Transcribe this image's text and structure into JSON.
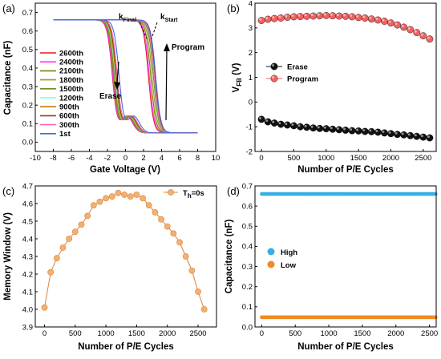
{
  "chart_data": [
    {
      "panel": "(a)",
      "type": "line",
      "xlabel": "Gate Voltage (V)",
      "ylabel": "Capacitance (nF)",
      "xlim": [
        -10,
        10
      ],
      "ylim": [
        -0.05,
        0.75
      ],
      "xticks": [
        -10,
        -8,
        -6,
        -4,
        -2,
        0,
        2,
        4,
        6,
        8,
        10
      ],
      "yticks": [
        0.0,
        0.1,
        0.2,
        0.3,
        0.4,
        0.5,
        0.6,
        0.7
      ],
      "legend_position": "left",
      "series": [
        {
          "name": "2600th",
          "color": "#e41a1c",
          "erase_vfb": -1.45,
          "program_vfb": 2.55
        },
        {
          "name": "2400th",
          "color": "#ff33ff",
          "erase_vfb": -1.4,
          "program_vfb": 2.65
        },
        {
          "name": "2100th",
          "color": "#7f7f00",
          "erase_vfb": -1.32,
          "program_vfb": 2.8
        },
        {
          "name": "1800th",
          "color": "#9a9a33",
          "erase_vfb": -1.25,
          "program_vfb": 2.95
        },
        {
          "name": "1500th",
          "color": "#6b8e23",
          "erase_vfb": -1.2,
          "program_vfb": 3.1
        },
        {
          "name": "1200th",
          "color": "#7fffd4",
          "erase_vfb": -1.14,
          "program_vfb": 3.2
        },
        {
          "name": "900th",
          "color": "#b8860b",
          "erase_vfb": -1.08,
          "program_vfb": 3.3
        },
        {
          "name": "600th",
          "color": "#8b4513",
          "erase_vfb": -1.0,
          "program_vfb": 3.3
        },
        {
          "name": "300th",
          "color": "#ff69b4",
          "erase_vfb": -0.9,
          "program_vfb": 3.2
        },
        {
          "name": "1st",
          "color": "#4169e1",
          "erase_vfb": -0.7,
          "program_vfb": 3.35
        }
      ],
      "c_max": 0.66,
      "c_min": 0.05,
      "annotations": {
        "k_final": "k",
        "k_final_sub": "Final",
        "k_start": "k",
        "k_start_sub": "Start",
        "erase": "Erase",
        "program": "Program"
      }
    },
    {
      "panel": "(b)",
      "type": "scatter",
      "xlabel": "Number of P/E Cycles",
      "ylabel": "V",
      "ylabel_sub": "FB",
      "ylabel_unit": " (V)",
      "xlim": [
        -100,
        2700
      ],
      "ylim": [
        -2,
        4
      ],
      "xticks": [
        0,
        500,
        1000,
        1500,
        2000,
        2500
      ],
      "yticks": [
        -2,
        -1,
        0,
        1,
        2,
        3,
        4
      ],
      "legend_position": "center-left",
      "x": [
        0,
        100,
        200,
        300,
        400,
        500,
        600,
        700,
        800,
        900,
        1000,
        1100,
        1200,
        1300,
        1400,
        1500,
        1600,
        1700,
        1800,
        1900,
        2000,
        2100,
        2200,
        2300,
        2400,
        2500,
        2600
      ],
      "series": [
        {
          "name": "Erase",
          "color": "#111111",
          "values": [
            -0.7,
            -0.8,
            -0.85,
            -0.9,
            -0.93,
            -0.96,
            -1.0,
            -1.02,
            -1.05,
            -1.07,
            -1.08,
            -1.1,
            -1.12,
            -1.14,
            -1.16,
            -1.17,
            -1.19,
            -1.2,
            -1.22,
            -1.25,
            -1.28,
            -1.31,
            -1.33,
            -1.36,
            -1.39,
            -1.42,
            -1.45
          ]
        },
        {
          "name": "Program",
          "color": "#f26161",
          "values": [
            3.3,
            3.35,
            3.38,
            3.4,
            3.43,
            3.45,
            3.46,
            3.47,
            3.48,
            3.49,
            3.5,
            3.49,
            3.48,
            3.47,
            3.45,
            3.42,
            3.4,
            3.36,
            3.32,
            3.27,
            3.2,
            3.12,
            3.03,
            2.93,
            2.81,
            2.68,
            2.55
          ]
        }
      ]
    },
    {
      "panel": "(c)",
      "type": "line",
      "xlabel": "Number of P/E Cycles",
      "ylabel": "Memory Window (V)",
      "xlim": [
        -150,
        2800
      ],
      "ylim": [
        3.9,
        4.7
      ],
      "xticks": [
        0,
        500,
        1000,
        1500,
        2000,
        2500
      ],
      "yticks": [
        3.9,
        4.0,
        4.1,
        4.2,
        4.3,
        4.4,
        4.5,
        4.6,
        4.7
      ],
      "legend_position": "top-right",
      "x": [
        0,
        100,
        200,
        300,
        400,
        500,
        600,
        700,
        800,
        900,
        1000,
        1100,
        1200,
        1300,
        1400,
        1500,
        1600,
        1700,
        1800,
        1900,
        2000,
        2100,
        2200,
        2300,
        2400,
        2500,
        2600
      ],
      "series": [
        {
          "name": "T",
          "name_sub": "h",
          "name_rest": "=0s",
          "color": "#f4b070",
          "line_color": "#d9843c",
          "values": [
            4.01,
            4.21,
            4.29,
            4.35,
            4.4,
            4.44,
            4.48,
            4.53,
            4.59,
            4.61,
            4.63,
            4.64,
            4.66,
            4.65,
            4.64,
            4.65,
            4.63,
            4.59,
            4.55,
            4.51,
            4.47,
            4.43,
            4.38,
            4.3,
            4.22,
            4.1,
            4.0
          ]
        }
      ]
    },
    {
      "panel": "(d)",
      "type": "scatter",
      "xlabel": "Number of P/E Cycles",
      "ylabel": "Capacitance (nF)",
      "xlim": [
        -100,
        2600
      ],
      "ylim": [
        0.0,
        0.7
      ],
      "xticks": [
        0,
        500,
        1000,
        1500,
        2000,
        2500
      ],
      "yticks": [
        0.0,
        0.1,
        0.2,
        0.3,
        0.4,
        0.5,
        0.6,
        0.7
      ],
      "legend_position": "center-left",
      "x_start": 0,
      "x_end": 2600,
      "x_step": 12,
      "series": [
        {
          "name": "High",
          "color": "#3aaee6",
          "value": 0.66
        },
        {
          "name": "Low",
          "color": "#f08a24",
          "value": 0.048
        }
      ]
    }
  ]
}
